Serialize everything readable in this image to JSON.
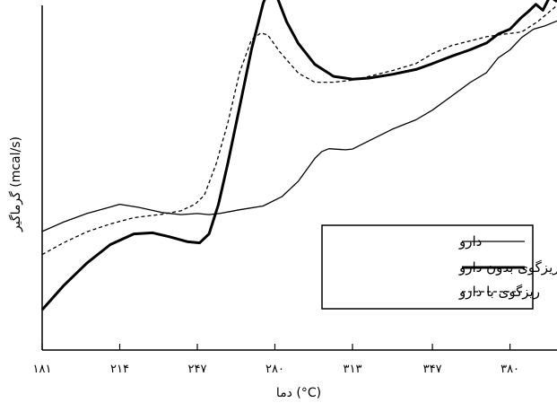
{
  "chart_data": {
    "type": "line",
    "xlabel": "دما (°C)",
    "ylabel": "گرماگیر (mcal/s)",
    "xlim": [
      181,
      400
    ],
    "ylim": [
      0,
      100
    ],
    "x_ticks": [
      {
        "value": 181,
        "label": "۱۸۱"
      },
      {
        "value": 214,
        "label": "۲۱۴"
      },
      {
        "value": 247,
        "label": "۲۴۷"
      },
      {
        "value": 280,
        "label": "۲۸۰"
      },
      {
        "value": 313,
        "label": "۳۱۳"
      },
      {
        "value": 347,
        "label": "۳۴۷"
      },
      {
        "value": 380,
        "label": "۳۸۰"
      }
    ],
    "grid": false,
    "legend_position": "bottom-right",
    "series": [
      {
        "name": "دارو",
        "style": "thin-solid",
        "color": "#000000",
        "points": [
          [
            181,
            34.4
          ],
          [
            190,
            37.1
          ],
          [
            200,
            39.6
          ],
          [
            210,
            41.5
          ],
          [
            214,
            42.3
          ],
          [
            222,
            41.4
          ],
          [
            232,
            39.9
          ],
          [
            240,
            39.3
          ],
          [
            247,
            39.6
          ],
          [
            252,
            39.3
          ],
          [
            257,
            39.7
          ],
          [
            265,
            40.7
          ],
          [
            275,
            41.8
          ],
          [
            283,
            44.5
          ],
          [
            290,
            49.0
          ],
          [
            297,
            55.6
          ],
          [
            300,
            57.6
          ],
          [
            303,
            58.4
          ],
          [
            310,
            58.1
          ],
          [
            313,
            58.3
          ],
          [
            320,
            60.7
          ],
          [
            330,
            64.1
          ],
          [
            340,
            66.8
          ],
          [
            347,
            69.6
          ],
          [
            355,
            73.6
          ],
          [
            363,
            77.6
          ],
          [
            370,
            80.5
          ],
          [
            375,
            84.8
          ],
          [
            380,
            87.1
          ],
          [
            385,
            90.7
          ],
          [
            390,
            93.1
          ],
          [
            395,
            94.1
          ],
          [
            400,
            95.5
          ]
        ]
      },
      {
        "name": "ریزگوی بدون دارو",
        "style": "thick-solid",
        "color": "#000000",
        "points": [
          [
            181,
            11.7
          ],
          [
            190,
            18.6
          ],
          [
            200,
            25.2
          ],
          [
            210,
            30.6
          ],
          [
            220,
            33.7
          ],
          [
            228,
            34.0
          ],
          [
            235,
            32.9
          ],
          [
            243,
            31.4
          ],
          [
            248,
            31.1
          ],
          [
            252,
            33.7
          ],
          [
            256,
            42.3
          ],
          [
            260,
            54.3
          ],
          [
            265,
            70.6
          ],
          [
            270,
            87.1
          ],
          [
            275,
            100.6
          ],
          [
            278,
            105.7
          ],
          [
            281,
            102.3
          ],
          [
            285,
            95.2
          ],
          [
            290,
            88.9
          ],
          [
            297,
            82.9
          ],
          [
            305,
            79.4
          ],
          [
            313,
            78.6
          ],
          [
            320,
            78.9
          ],
          [
            330,
            80.0
          ],
          [
            340,
            81.4
          ],
          [
            347,
            83.1
          ],
          [
            355,
            85.2
          ],
          [
            363,
            87.1
          ],
          [
            370,
            89.1
          ],
          [
            375,
            91.7
          ],
          [
            380,
            93.1
          ],
          [
            385,
            96.6
          ],
          [
            388,
            98.3
          ],
          [
            391,
            100.3
          ],
          [
            394,
            98.6
          ],
          [
            397,
            102.6
          ],
          [
            400,
            101.1
          ]
        ]
      },
      {
        "name": "ریزگوی با دارو",
        "style": "dashed",
        "color": "#000000",
        "points": [
          [
            181,
            27.7
          ],
          [
            190,
            31.1
          ],
          [
            200,
            34.3
          ],
          [
            210,
            36.6
          ],
          [
            220,
            38.4
          ],
          [
            232,
            39.4
          ],
          [
            240,
            40.4
          ],
          [
            246,
            42.3
          ],
          [
            250,
            44.9
          ],
          [
            255,
            54.0
          ],
          [
            260,
            66.0
          ],
          [
            265,
            80.6
          ],
          [
            270,
            90.0
          ],
          [
            274,
            92.0
          ],
          [
            277,
            91.4
          ],
          [
            282,
            86.6
          ],
          [
            290,
            80.3
          ],
          [
            297,
            77.7
          ],
          [
            305,
            77.7
          ],
          [
            313,
            78.3
          ],
          [
            320,
            79.4
          ],
          [
            330,
            81.1
          ],
          [
            340,
            83.1
          ],
          [
            347,
            86.0
          ],
          [
            355,
            88.3
          ],
          [
            363,
            89.7
          ],
          [
            370,
            90.9
          ],
          [
            378,
            91.7
          ],
          [
            385,
            92.3
          ],
          [
            392,
            95.4
          ],
          [
            400,
            100.0
          ]
        ]
      }
    ]
  }
}
